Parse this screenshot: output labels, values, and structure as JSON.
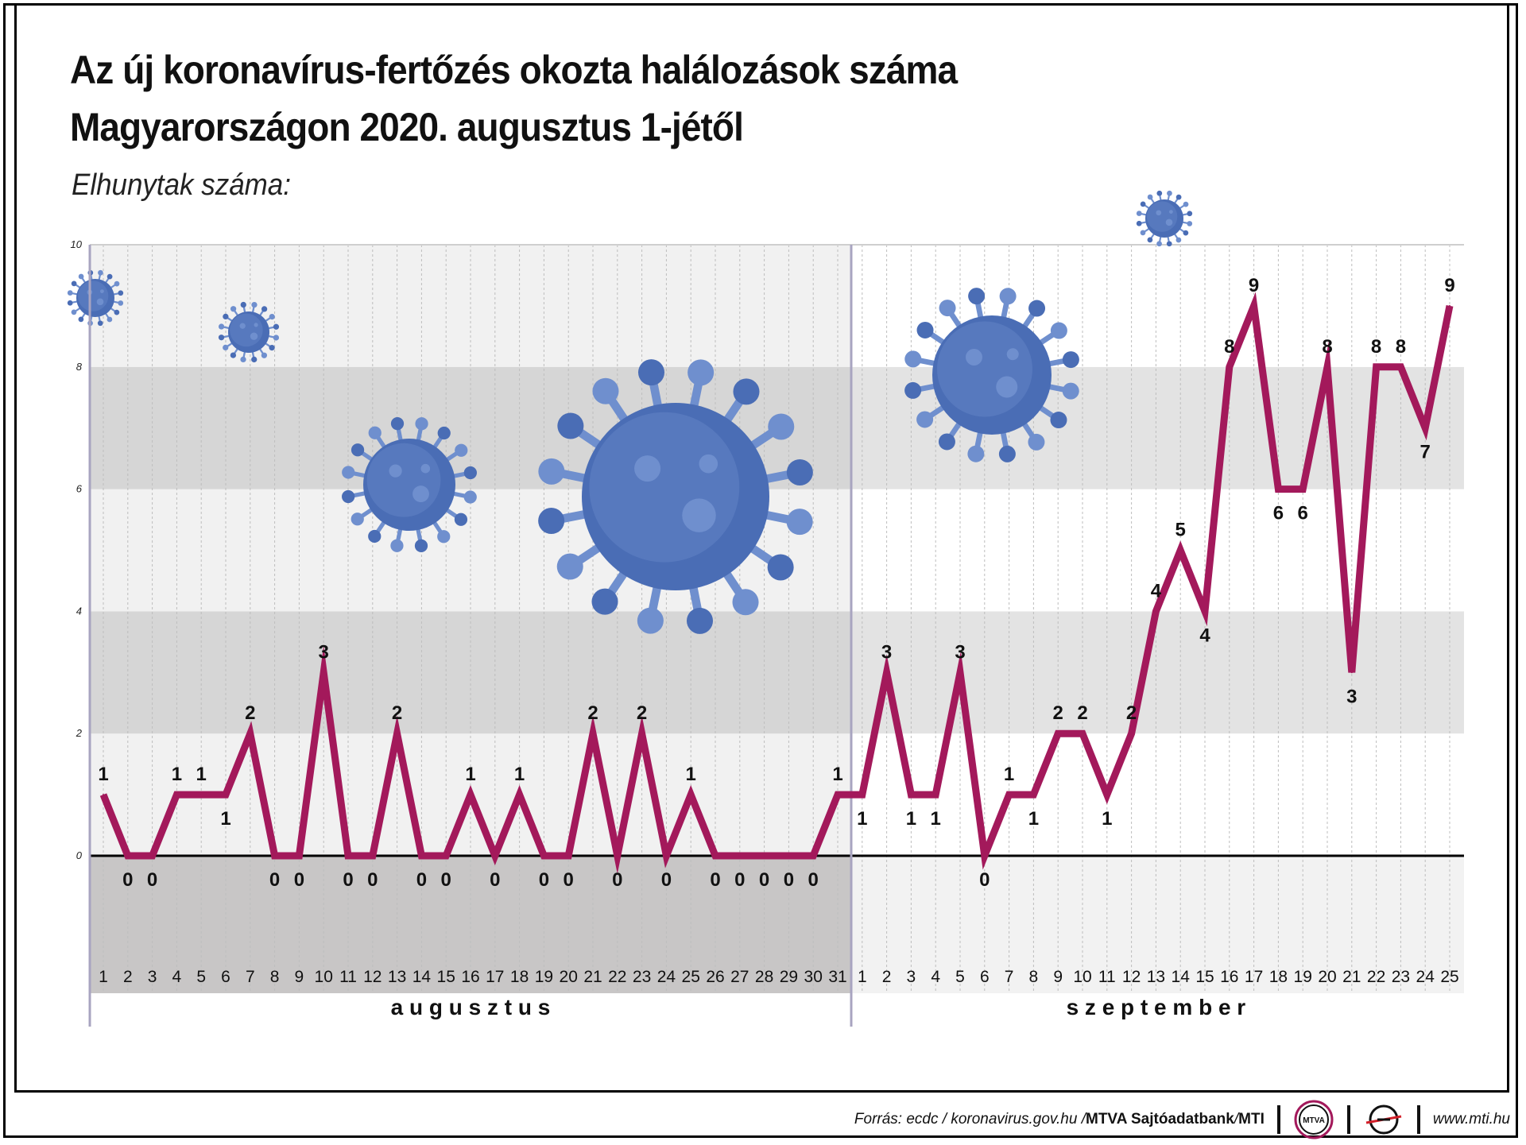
{
  "header": {
    "title_line1": "Az új koronavírus-fertőzés okozta halálozások száma",
    "title_line2": "Magyarországon 2020. augusztus 1-jétől",
    "subtitle": "Elhunytak száma:"
  },
  "footer": {
    "source_prefix": "Forrás: ecdc / koronavirus.gov.hu / ",
    "source_bold1": "MTVA Sajtóadatbank",
    "source_mid": " / ",
    "source_bold2": "MTI",
    "logo1_text": "MTVA",
    "url": "www.mti.hu"
  },
  "colors": {
    "line": "#a3195b",
    "virus": "#4a6db5",
    "virus_light": "#6f8fce",
    "axis": "#000000"
  },
  "chart_data": {
    "type": "line",
    "ylim": [
      0,
      10
    ],
    "yticks": [
      "0",
      "2",
      "4",
      "6",
      "8",
      "10"
    ],
    "months": [
      "a u g u s z t u s",
      "s z e p t e m b e r"
    ],
    "august_days": [
      "1",
      "2",
      "3",
      "4",
      "5",
      "6",
      "7",
      "8",
      "9",
      "10",
      "11",
      "12",
      "13",
      "14",
      "15",
      "16",
      "17",
      "18",
      "19",
      "20",
      "21",
      "22",
      "23",
      "24",
      "25",
      "26",
      "27",
      "28",
      "29",
      "30",
      "31"
    ],
    "september_days": [
      "1",
      "2",
      "3",
      "4",
      "5",
      "6",
      "7",
      "8",
      "9",
      "10",
      "11",
      "12",
      "13",
      "14",
      "15",
      "16",
      "17",
      "18",
      "19",
      "20",
      "21",
      "22",
      "23",
      "24",
      "25"
    ],
    "series": [
      {
        "values": [
          1,
          0,
          0,
          1,
          1,
          1,
          2,
          0,
          0,
          3,
          0,
          0,
          2,
          0,
          0,
          1,
          0,
          1,
          0,
          0,
          2,
          0,
          2,
          0,
          1,
          0,
          0,
          0,
          0,
          0,
          1,
          1,
          3,
          1,
          1,
          3,
          0,
          1,
          1,
          2,
          2,
          1,
          2,
          4,
          5,
          4,
          8,
          9,
          6,
          6,
          8,
          3,
          8,
          8,
          7,
          9
        ]
      }
    ],
    "grid": true
  }
}
